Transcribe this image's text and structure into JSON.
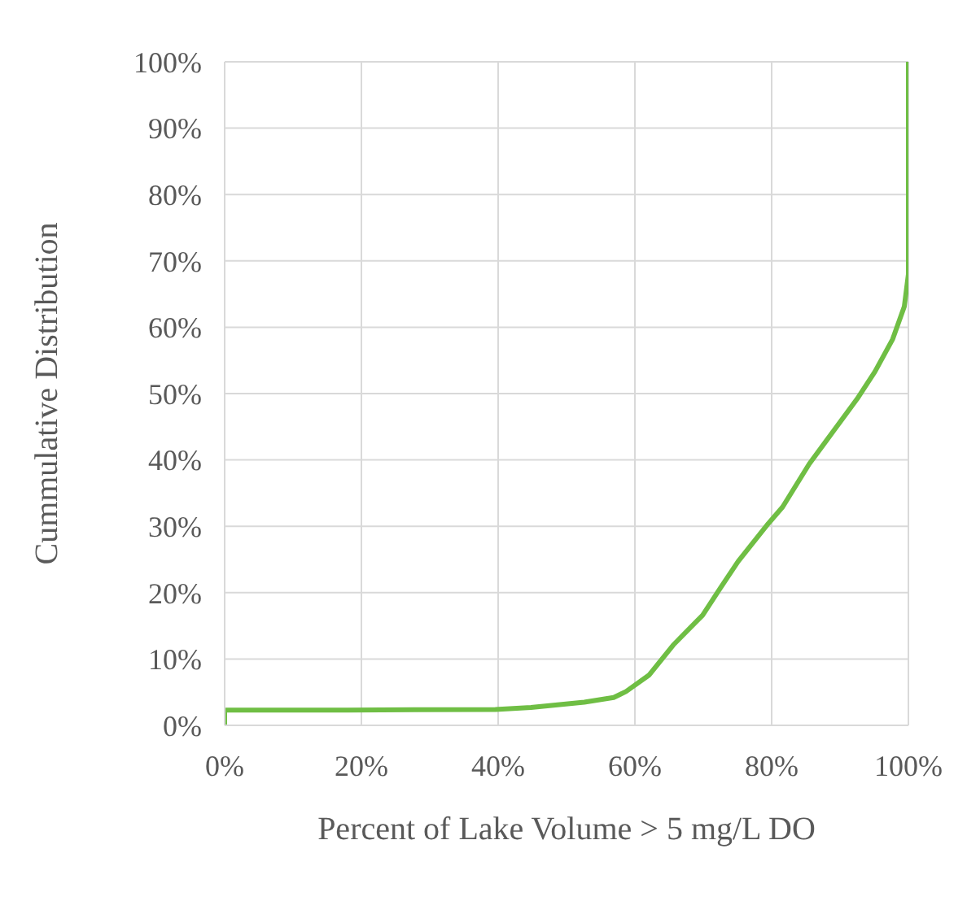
{
  "chart_data": {
    "type": "line",
    "xlabel": "Percent of Lake Volume > 5 mg/L DO",
    "ylabel": "Cummulative Distribution",
    "series": [
      {
        "color": "#6fbe44",
        "x": [
          0,
          0,
          18,
          39.6,
          44.8,
          52.6,
          56.9,
          58.7,
          62.1,
          65.6,
          69.9,
          72.5,
          75.1,
          79.5,
          81.6,
          85.5,
          89,
          92.5,
          95.1,
          97.7,
          99.4,
          100,
          100
        ],
        "values": [
          0,
          2.3,
          2.3,
          2.4,
          2.7,
          3.5,
          4.2,
          5.1,
          7.6,
          12.1,
          16.6,
          20.7,
          24.7,
          30.4,
          32.9,
          39.4,
          44.3,
          49.2,
          53.3,
          58.2,
          63.1,
          68,
          100
        ]
      }
    ],
    "xlim": [
      0,
      100
    ],
    "xticks": [
      {
        "value": 0,
        "label": "0%"
      },
      {
        "value": 20,
        "label": "20%"
      },
      {
        "value": 40,
        "label": "40%"
      },
      {
        "value": 60,
        "label": "60%"
      },
      {
        "value": 80,
        "label": "80%"
      },
      {
        "value": 100,
        "label": "100%"
      }
    ],
    "ylim": [
      0,
      100
    ],
    "yticks": [
      {
        "value": 0,
        "label": "0%"
      },
      {
        "value": 10,
        "label": "10%"
      },
      {
        "value": 20,
        "label": "20%"
      },
      {
        "value": 30,
        "label": "30%"
      },
      {
        "value": 40,
        "label": "40%"
      },
      {
        "value": 50,
        "label": "50%"
      },
      {
        "value": 60,
        "label": "60%"
      },
      {
        "value": 70,
        "label": "70%"
      },
      {
        "value": 80,
        "label": "80%"
      },
      {
        "value": 90,
        "label": "90%"
      },
      {
        "value": 100,
        "label": "100%"
      }
    ],
    "grid": true,
    "legend": false,
    "marker": "none",
    "line_style": "solid"
  }
}
